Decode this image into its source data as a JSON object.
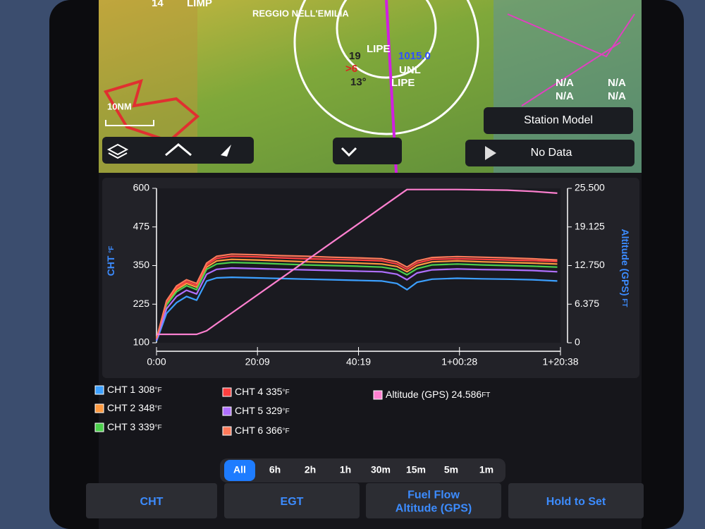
{
  "map": {
    "labels": {
      "airway": "14",
      "limp": "LIMP",
      "reggio": "REGGIO NELL'EMILIA",
      "station_top": "LIPE",
      "temp": "19",
      "vis": ">6",
      "pressure": "1015.0",
      "ceiling": "UNL",
      "dew": "13°",
      "station_bottom": "LIPE",
      "na": [
        "N/A",
        "N/A",
        "N/A",
        "N/A"
      ]
    },
    "scale": "10NM"
  },
  "toolbar": {
    "station_model": "Station Model",
    "no_data": "No Data"
  },
  "chart_data": {
    "type": "line",
    "x": [
      0,
      2,
      4,
      6,
      8,
      10,
      12,
      15,
      20,
      25,
      30,
      35,
      40,
      45,
      48,
      50,
      52,
      55,
      60,
      65,
      70,
      75,
      80
    ],
    "xlim": [
      0,
      80.63
    ],
    "xticks": [
      {
        "value": 0,
        "label": "0:00"
      },
      {
        "value": 20.15,
        "label": "20:09"
      },
      {
        "value": 40.32,
        "label": "40:19"
      },
      {
        "value": 60.47,
        "label": "1+00:28"
      },
      {
        "value": 80.63,
        "label": "1+20:38"
      }
    ],
    "ylim": [
      100,
      600
    ],
    "yticks": [
      100,
      225,
      350,
      475,
      600
    ],
    "y2lim": [
      0,
      25500
    ],
    "y2ticks": [
      0,
      {
        "value": 6375,
        "label": "6.375"
      },
      {
        "value": 12750,
        "label": "12.750"
      },
      {
        "value": 19125,
        "label": "19.125"
      },
      {
        "value": 25500,
        "label": "25.500"
      }
    ],
    "y_label": "CHT",
    "y_unit": "°F",
    "y2_label": "Altitude (GPS)",
    "y2_unit": "FT",
    "series": [
      {
        "name": "CHT 1",
        "color": "#3ca0ff",
        "values": [
          105,
          195,
          230,
          250,
          238,
          300,
          310,
          312,
          310,
          308,
          306,
          304,
          302,
          300,
          292,
          272,
          296,
          306,
          309,
          307,
          306,
          304,
          300
        ]
      },
      {
        "name": "CHT 2",
        "color": "#ff9a40",
        "values": [
          112,
          228,
          272,
          292,
          280,
          345,
          365,
          370,
          368,
          365,
          362,
          360,
          358,
          355,
          347,
          330,
          350,
          362,
          365,
          362,
          360,
          358,
          355
        ]
      },
      {
        "name": "CHT 3",
        "color": "#4cd04c",
        "values": [
          110,
          222,
          265,
          285,
          272,
          338,
          355,
          360,
          358,
          355,
          352,
          350,
          348,
          345,
          337,
          320,
          340,
          352,
          355,
          352,
          350,
          348,
          345
        ]
      },
      {
        "name": "CHT 4",
        "color": "#ff4040",
        "values": [
          112,
          232,
          278,
          298,
          286,
          352,
          373,
          380,
          378,
          375,
          372,
          370,
          368,
          365,
          355,
          338,
          358,
          370,
          372,
          370,
          368,
          366,
          363
        ]
      },
      {
        "name": "CHT 5",
        "color": "#b070ff",
        "values": [
          108,
          210,
          250,
          270,
          258,
          322,
          338,
          342,
          340,
          338,
          336,
          334,
          332,
          330,
          322,
          304,
          326,
          336,
          339,
          337,
          336,
          334,
          330
        ]
      },
      {
        "name": "CHT 6",
        "color": "#ff7a5a",
        "values": [
          114,
          236,
          284,
          304,
          292,
          358,
          380,
          387,
          385,
          382,
          380,
          377,
          375,
          372,
          362,
          345,
          365,
          376,
          379,
          377,
          375,
          372,
          368
        ]
      },
      {
        "name": "Altitude (GPS)",
        "color": "#ff80d0",
        "axis": "y2",
        "values": [
          1400,
          1400,
          1400,
          1400,
          1400,
          1980,
          3150,
          4900,
          7810,
          10730,
          13640,
          16560,
          19470,
          22390,
          24140,
          25300,
          25300,
          25300,
          25300,
          25250,
          25200,
          25000,
          24700
        ]
      }
    ]
  },
  "legend": [
    {
      "name": "CHT 1",
      "reading": "308",
      "unit": "°F"
    },
    {
      "name": "CHT 2",
      "reading": "348",
      "unit": "°F"
    },
    {
      "name": "CHT 3",
      "reading": "339",
      "unit": "°F"
    },
    {
      "name": "CHT 4",
      "reading": "335",
      "unit": "°F"
    },
    {
      "name": "CHT 5",
      "reading": "329",
      "unit": "°F"
    },
    {
      "name": "CHT 6",
      "reading": "366",
      "unit": "°F"
    },
    {
      "name": "Altitude (GPS)",
      "reading": "24.586",
      "unit": "FT"
    }
  ],
  "time_ranges": {
    "options": [
      "All",
      "6h",
      "2h",
      "1h",
      "30m",
      "15m",
      "5m",
      "1m"
    ],
    "selected_index": 0
  },
  "tabs": [
    {
      "lines": [
        "CHT"
      ]
    },
    {
      "lines": [
        "EGT"
      ]
    },
    {
      "lines": [
        "Fuel Flow",
        "Altitude (GPS)"
      ]
    },
    {
      "lines": [
        "Hold to Set"
      ]
    }
  ]
}
